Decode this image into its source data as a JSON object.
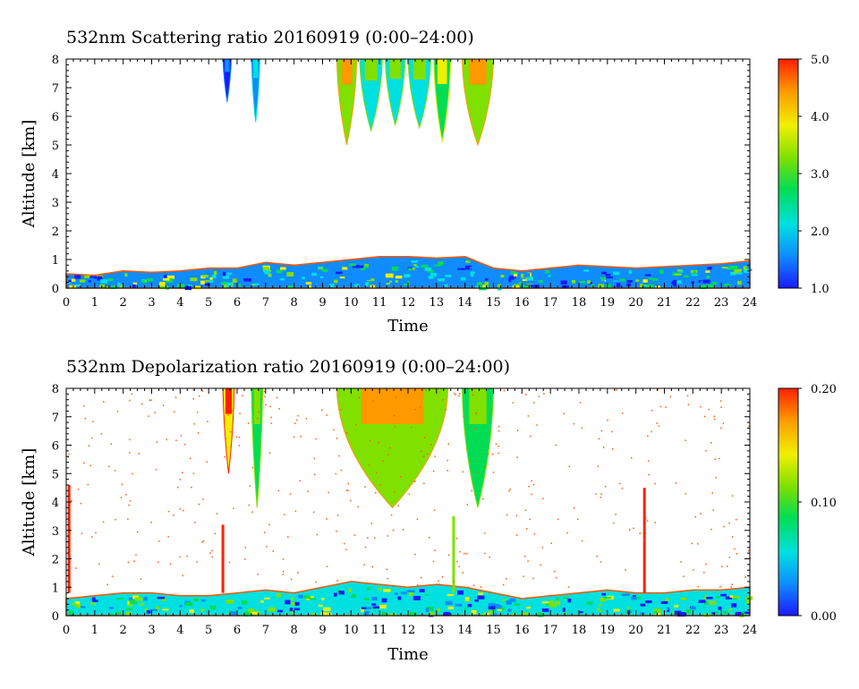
{
  "chart_data": [
    {
      "type": "heatmap",
      "title": "532nm Scattering ratio  20160919 (0:00–24:00)",
      "xlabel": "Time",
      "ylabel": "Altitude [km]",
      "xlim": [
        0,
        24
      ],
      "ylim": [
        0,
        8
      ],
      "xticks": [
        0,
        1,
        2,
        3,
        4,
        5,
        6,
        7,
        8,
        9,
        10,
        11,
        12,
        13,
        14,
        15,
        16,
        17,
        18,
        19,
        20,
        21,
        22,
        23,
        24
      ],
      "yticks": [
        0,
        1,
        2,
        3,
        4,
        5,
        6,
        7,
        8
      ],
      "colorbar": {
        "min": 1.0,
        "max": 5.0,
        "labels": [
          "5.0",
          "4.0",
          "3.0",
          "2.0",
          "1.0"
        ],
        "label_values": [
          5.0,
          4.0,
          3.0,
          2.0,
          1.0
        ]
      },
      "colormap": [
        "#1a1aff",
        "#0f8cff",
        "#00e0e0",
        "#00dd55",
        "#80e000",
        "#f0f000",
        "#ff9900",
        "#ff2000"
      ],
      "features": [
        {
          "kind": "boundary_layer",
          "x": [
            0,
            1,
            2,
            3,
            4,
            5,
            6,
            7,
            8,
            9,
            10,
            11,
            12,
            13,
            14,
            15,
            16,
            17,
            18,
            19,
            20,
            21,
            22,
            23,
            24
          ],
          "y_top": [
            0.5,
            0.45,
            0.6,
            0.55,
            0.6,
            0.7,
            0.7,
            0.9,
            0.8,
            0.9,
            1.0,
            1.1,
            1.1,
            1.05,
            1.1,
            0.7,
            0.6,
            0.7,
            0.8,
            0.75,
            0.7,
            0.75,
            0.8,
            0.85,
            0.95
          ],
          "value": 1.8
        },
        {
          "kind": "cloud",
          "x_start": 5.5,
          "x_end": 5.8,
          "base": 6.5,
          "top": 8,
          "value": 1.8
        },
        {
          "kind": "cloud",
          "x_start": 6.5,
          "x_end": 6.8,
          "base": 5.8,
          "top": 8,
          "value": 2.2
        },
        {
          "kind": "cloud",
          "x_start": 9.5,
          "x_end": 10.2,
          "base": 5.0,
          "top": 8,
          "value": 4.2
        },
        {
          "kind": "cloud",
          "x_start": 10.3,
          "x_end": 11.1,
          "base": 5.5,
          "top": 8,
          "value": 3.0
        },
        {
          "kind": "cloud",
          "x_start": 11.2,
          "x_end": 11.9,
          "base": 5.7,
          "top": 8,
          "value": 3.2
        },
        {
          "kind": "cloud",
          "x_start": 12.0,
          "x_end": 12.8,
          "base": 5.6,
          "top": 8,
          "value": 3.0
        },
        {
          "kind": "cloud",
          "x_start": 12.9,
          "x_end": 13.5,
          "base": 5.1,
          "top": 8,
          "value": 3.6
        },
        {
          "kind": "cloud",
          "x_start": 13.9,
          "x_end": 15.0,
          "base": 5.0,
          "top": 8,
          "value": 4.0
        }
      ]
    },
    {
      "type": "heatmap",
      "title": "532nm Depolarization ratio  20160919 (0:00–24:00)",
      "xlabel": "Time",
      "ylabel": "Altitude [km]",
      "xlim": [
        0,
        24
      ],
      "ylim": [
        0,
        8
      ],
      "xticks": [
        0,
        1,
        2,
        3,
        4,
        5,
        6,
        7,
        8,
        9,
        10,
        11,
        12,
        13,
        14,
        15,
        16,
        17,
        18,
        19,
        20,
        21,
        22,
        23,
        24
      ],
      "yticks": [
        0,
        1,
        2,
        3,
        4,
        5,
        6,
        7,
        8
      ],
      "colorbar": {
        "min": 0.0,
        "max": 0.2,
        "labels": [
          "0.20",
          "0.10",
          "0.00"
        ],
        "label_values": [
          0.2,
          0.1,
          0.0
        ]
      },
      "colormap": [
        "#1a1aff",
        "#0f8cff",
        "#00e0e0",
        "#00dd55",
        "#80e000",
        "#f0f000",
        "#ff9900",
        "#ff2000"
      ],
      "features": [
        {
          "kind": "boundary_layer",
          "x": [
            0,
            1,
            2,
            3,
            4,
            5,
            6,
            7,
            8,
            9,
            10,
            11,
            12,
            13,
            14,
            15,
            16,
            17,
            18,
            19,
            20,
            21,
            22,
            23,
            24
          ],
          "y_top": [
            0.6,
            0.7,
            0.8,
            0.8,
            0.7,
            0.7,
            0.8,
            0.9,
            0.8,
            1.0,
            1.2,
            1.1,
            1.0,
            1.1,
            1.0,
            0.8,
            0.6,
            0.7,
            0.8,
            0.9,
            0.8,
            0.8,
            0.9,
            0.9,
            1.0
          ],
          "value": 0.05
        },
        {
          "kind": "cloud",
          "x_start": 5.5,
          "x_end": 5.9,
          "base": 5.0,
          "top": 8,
          "value": 0.18
        },
        {
          "kind": "cloud",
          "x_start": 6.5,
          "x_end": 6.9,
          "base": 3.8,
          "top": 8,
          "value": 0.12
        },
        {
          "kind": "cloud",
          "x_start": 9.5,
          "x_end": 13.4,
          "base": 3.8,
          "top": 8,
          "value": 0.16
        },
        {
          "kind": "cloud",
          "x_start": 13.9,
          "x_end": 15.0,
          "base": 3.8,
          "top": 8,
          "value": 0.1
        },
        {
          "kind": "spike",
          "x": 5.5,
          "top": 3.2,
          "value": 0.18
        },
        {
          "kind": "spike",
          "x": 13.6,
          "top": 3.5,
          "value": 0.12
        },
        {
          "kind": "spike",
          "x": 20.3,
          "top": 4.5,
          "value": 0.18
        },
        {
          "kind": "spike",
          "x": 0.1,
          "top": 4.6,
          "value": 0.18
        }
      ]
    }
  ]
}
